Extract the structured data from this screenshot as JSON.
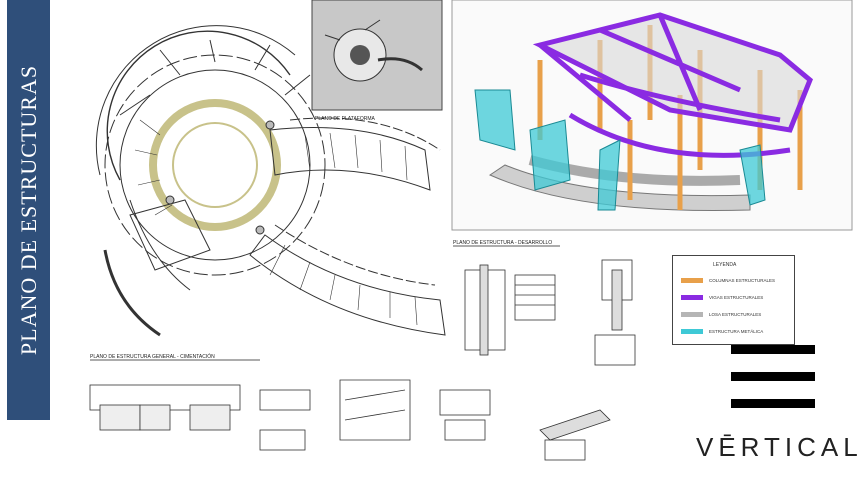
{
  "banner": {
    "title": "PLANO DE ESTRUCTURAS"
  },
  "brand": {
    "logo": "VĒRTICAL"
  },
  "labels": {
    "plano_plataforma": "PLANO DE PLATAFORMA",
    "plano_general": "PLANO DE ESTRUCTURA GENERAL - CIMENTACIÓN",
    "plano_desarrollo": "PLANO DE ESTRUCTURA - DESARROLLO"
  },
  "legend": {
    "title": "LEYENDA",
    "items": [
      {
        "label": "COLUMNAS ESTRUCTURALES",
        "color": "#e8a04a"
      },
      {
        "label": "VIGAS ESTRUCTURALES",
        "color": "#8a2be2"
      },
      {
        "label": "LOSA ESTRUCTURALES",
        "color": "#b5b5b5"
      },
      {
        "label": "ESTRUCTURA METÁLICA",
        "color": "#3ec9d6"
      }
    ]
  },
  "colors": {
    "banner": "#2f4f7a",
    "thumbnail_bg": "#c8c8c8"
  }
}
